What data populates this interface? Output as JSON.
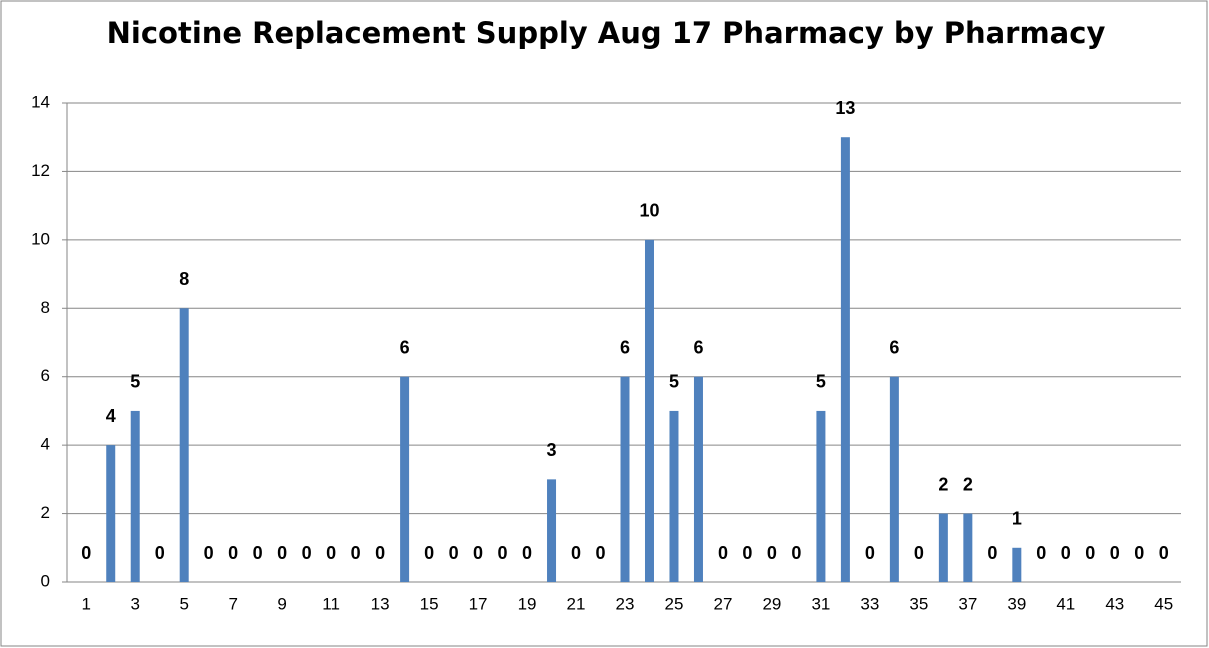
{
  "chart_data": {
    "type": "bar",
    "title": "Nicotine Replacement Supply Aug 17 Pharmacy by Pharmacy",
    "categories": [
      "1",
      null,
      "3",
      null,
      "5",
      null,
      "7",
      null,
      "9",
      null,
      "11",
      null,
      "13",
      null,
      "15",
      null,
      "17",
      null,
      "19",
      null,
      "21",
      null,
      "23",
      null,
      "25",
      null,
      "27",
      null,
      "29",
      null,
      "31",
      null,
      "33",
      null,
      "35",
      null,
      "37",
      null,
      "39",
      null,
      "41",
      null,
      "43",
      null,
      "45"
    ],
    "values": [
      0,
      4,
      5,
      0,
      8,
      0,
      0,
      0,
      0,
      0,
      0,
      0,
      0,
      6,
      0,
      0,
      0,
      0,
      0,
      3,
      0,
      0,
      6,
      10,
      5,
      6,
      0,
      0,
      0,
      0,
      5,
      13,
      0,
      6,
      0,
      2,
      2,
      0,
      1,
      0,
      0,
      0,
      0,
      0,
      0
    ],
    "color": "#4f81bd",
    "ylim": [
      0,
      14
    ],
    "yticks": [
      0,
      2,
      4,
      6,
      8,
      10,
      12,
      14
    ],
    "grid": true
  }
}
